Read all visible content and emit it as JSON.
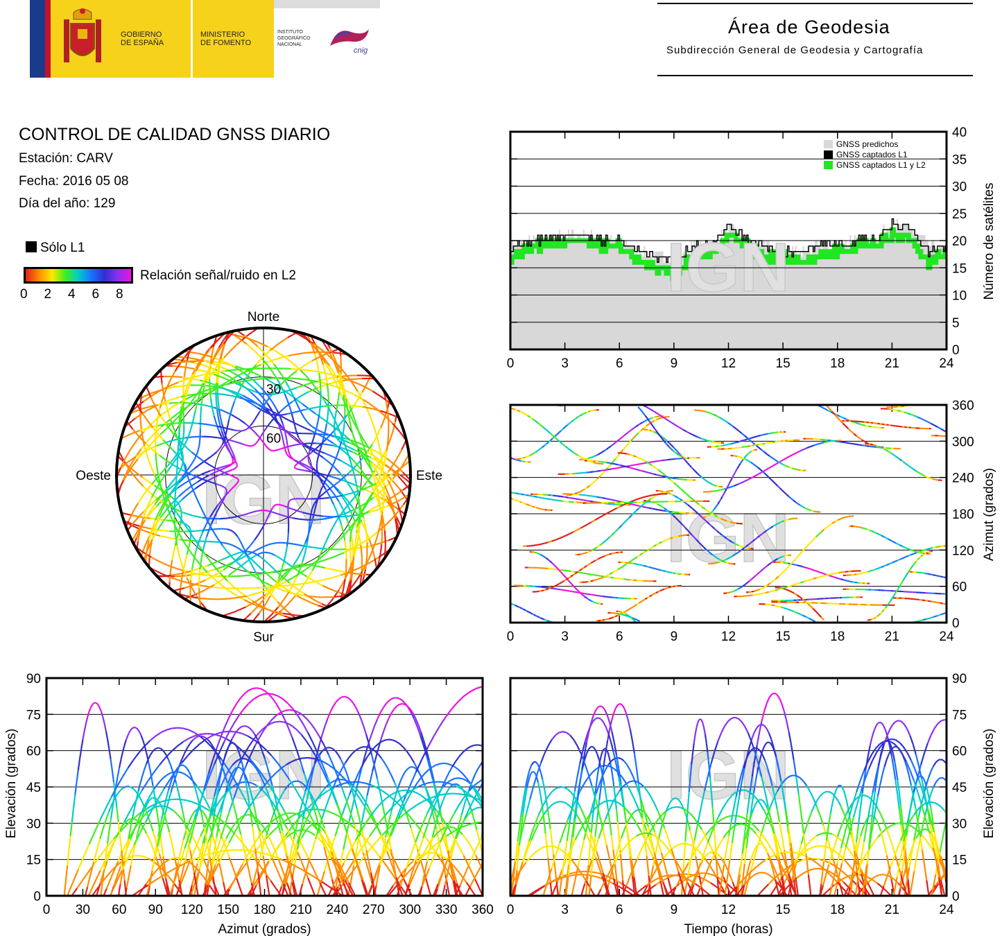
{
  "header": {
    "gov_line1": "GOBIERNO",
    "gov_line2": "DE ESPAÑA",
    "min_line1": "MINISTERIO",
    "min_line2": "DE FOMENTO",
    "inst_line1": "INSTITUTO",
    "inst_line2": "GEOGRÁFICO",
    "inst_line3": "NACIONAL",
    "cnig": "cnig",
    "area_title": "Área de Geodesia",
    "area_subtitle": "Subdirección General de Geodesia y Cartografía"
  },
  "report": {
    "title": "CONTROL DE CALIDAD GNSS DIARIO",
    "station": "Estación: CARV",
    "date": "Fecha: 2016 05 08",
    "doy": "Día del año: 129"
  },
  "legend": {
    "l1_only": "Sólo L1",
    "snr_label": "Relación señal/ruido en L2",
    "snr_ticks": [
      "0",
      "2",
      "4",
      "6",
      "8"
    ],
    "watermark": "IGN"
  },
  "colors": {
    "predicted": "#d8d8d8",
    "l1": "#000000",
    "l1l2": "#22e622",
    "snr_scale": [
      "#e0201a",
      "#ff8c00",
      "#ffe800",
      "#40ee20",
      "#00ccc8",
      "#1a70ff",
      "#3030d0",
      "#8a30f0",
      "#f010e0"
    ]
  },
  "chart_data": [
    {
      "type": "polar-skyplot",
      "labels": {
        "north": "Norte",
        "south": "Sur",
        "west": "Oeste",
        "east": "Este"
      },
      "rings": [
        30,
        60
      ],
      "ring_labels": [
        "30",
        "60"
      ]
    },
    {
      "type": "area",
      "ylabel": "Número de satélites",
      "xlim": [
        0,
        24
      ],
      "ylim": [
        0,
        40
      ],
      "xticks": [
        "0",
        "3",
        "6",
        "9",
        "12",
        "15",
        "18",
        "21",
        "24"
      ],
      "yticks": [
        "0",
        "5",
        "10",
        "15",
        "20",
        "25",
        "30",
        "35",
        "40"
      ],
      "legend_entries": [
        "GNSS predichos",
        "GNSS captados L1",
        "GNSS captados L1 y L2"
      ],
      "x": [
        0,
        1,
        2,
        3,
        4,
        5,
        6,
        7,
        8,
        9,
        10,
        11,
        12,
        13,
        14,
        15,
        16,
        17,
        18,
        19,
        20,
        21,
        22,
        23,
        24
      ],
      "series": [
        {
          "name": "GNSS predichos",
          "values": [
            19,
            20,
            20,
            21,
            21,
            20,
            20,
            18,
            17,
            17,
            19,
            19,
            22,
            20,
            19,
            18,
            18,
            19,
            19,
            20,
            20,
            23,
            22,
            19,
            18
          ]
        },
        {
          "name": "GNSS captados L1",
          "values": [
            18,
            19,
            19,
            20,
            20,
            19,
            19,
            17,
            16,
            15,
            18,
            18,
            22,
            19,
            18,
            17,
            17,
            18,
            18,
            19,
            19,
            22,
            21,
            17,
            18
          ]
        },
        {
          "name": "GNSS captados L1 y L2",
          "values": [
            17,
            19,
            19,
            20,
            20,
            19,
            19,
            16,
            15,
            14,
            17,
            18,
            21,
            19,
            17,
            17,
            16,
            17,
            18,
            19,
            19,
            21,
            20,
            16,
            18
          ]
        }
      ]
    },
    {
      "type": "scatter",
      "ylabel": "Azimut (grados)",
      "xlim": [
        0,
        24
      ],
      "ylim": [
        0,
        360
      ],
      "xticks": [
        "0",
        "3",
        "6",
        "9",
        "12",
        "15",
        "18",
        "21",
        "24"
      ],
      "yticks": [
        "0",
        "60",
        "120",
        "180",
        "240",
        "300",
        "360"
      ]
    },
    {
      "type": "scatter",
      "xlabel": "Azimut (grados)",
      "ylabel": "Elevación (grados)",
      "xlim": [
        0,
        360
      ],
      "ylim": [
        0,
        90
      ],
      "xticks": [
        "0",
        "30",
        "60",
        "90",
        "120",
        "150",
        "180",
        "210",
        "240",
        "270",
        "300",
        "330",
        "360"
      ],
      "yticks": [
        "0",
        "15",
        "30",
        "45",
        "60",
        "75",
        "90"
      ]
    },
    {
      "type": "scatter",
      "xlabel": "Tiempo (horas)",
      "ylabel": "Elevación (grados)",
      "xlim": [
        0,
        24
      ],
      "ylim": [
        0,
        90
      ],
      "xticks": [
        "0",
        "3",
        "6",
        "9",
        "12",
        "15",
        "18",
        "21",
        "24"
      ],
      "yticks": [
        "0",
        "15",
        "30",
        "45",
        "60",
        "75",
        "90"
      ]
    }
  ]
}
